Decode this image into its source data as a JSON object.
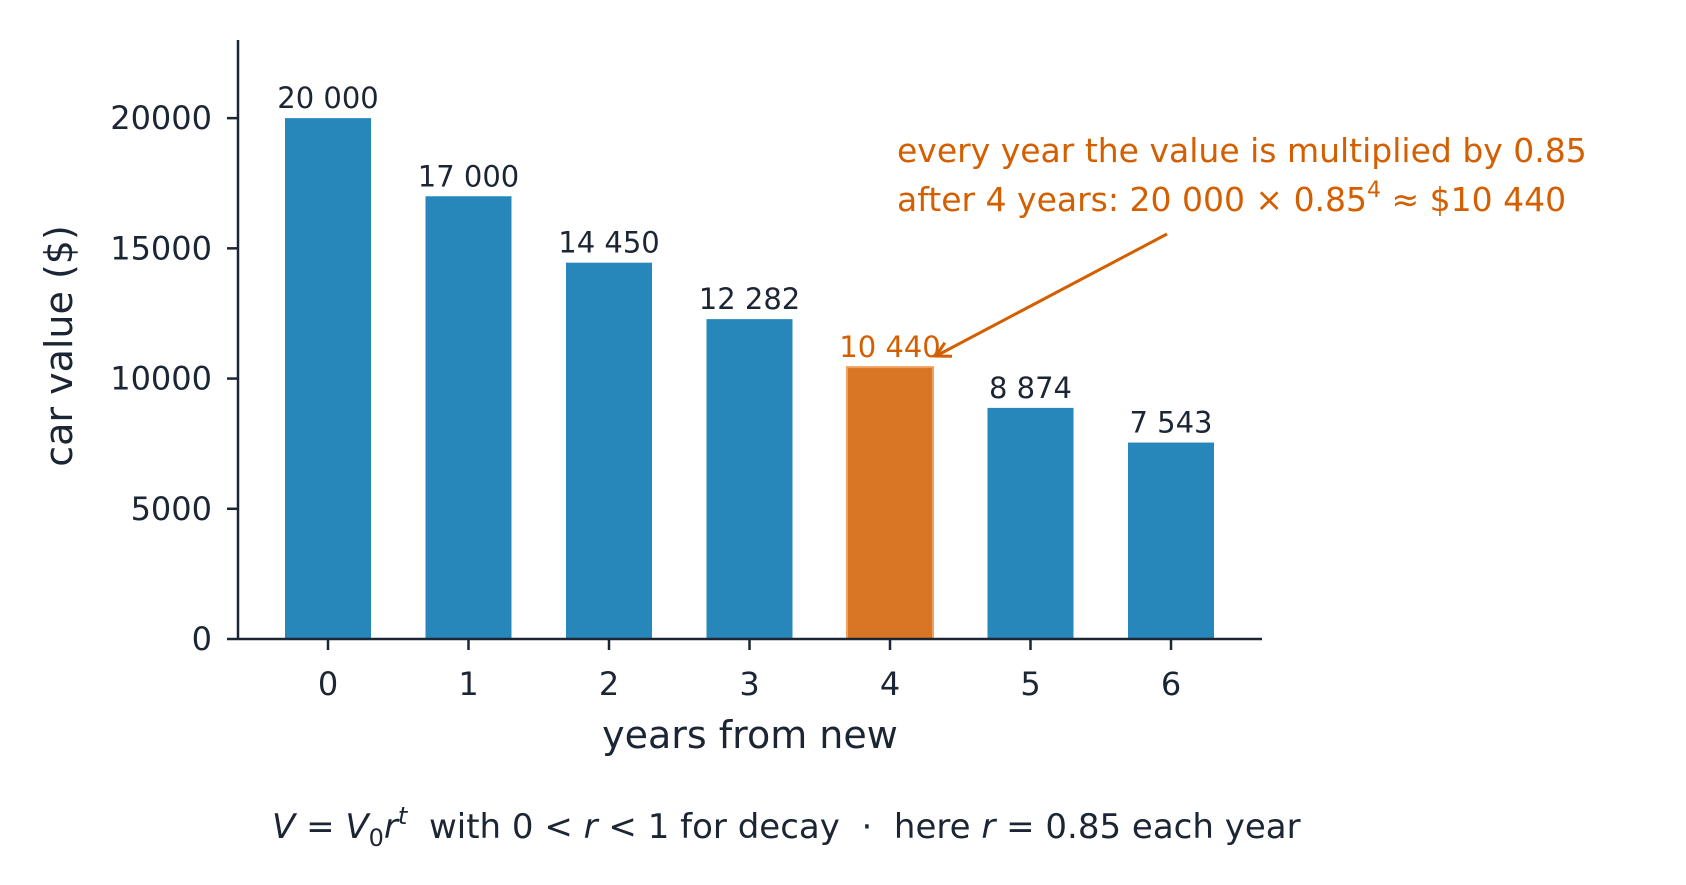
{
  "chart_data": {
    "type": "bar",
    "categories": [
      "0",
      "1",
      "2",
      "3",
      "4",
      "5",
      "6"
    ],
    "values": [
      20000,
      17000,
      14450,
      12282,
      10440,
      8874,
      7543
    ],
    "data_labels": [
      "20 000",
      "17 000",
      "14 450",
      "12 282",
      "10 440",
      "8 874",
      "7 543"
    ],
    "highlight_index": 4,
    "xlabel": "years from new",
    "ylabel": "car value ($)",
    "ylim": [
      0,
      23000
    ],
    "yticks": [
      0,
      5000,
      10000,
      15000,
      20000
    ],
    "ytick_labels": [
      "0",
      "5000",
      "10000",
      "15000",
      "20000"
    ],
    "grid": false,
    "colors": {
      "bar": "#2787bb",
      "highlight": "#d97626",
      "highlight_text": "#d35f00",
      "axis": "#1c2533"
    },
    "annotation": {
      "line1": "every year the value is multiplied by 0.85",
      "line2_prefix": "after 4 years: 20 000 × 0.85",
      "line2_sup": "4",
      "line2_suffix": " ≈ $10 440",
      "target_index": 4
    }
  },
  "footer": {
    "v": "V",
    "eq": " = ",
    "v0": "V",
    "v0_sub": "0",
    "r": "r",
    "t_sup": "t",
    "with": "  with 0 < ",
    "r2": "r",
    "lt1": " < 1 for decay  ·  here ",
    "r3": "r",
    "tail": " = 0.85 each year"
  }
}
